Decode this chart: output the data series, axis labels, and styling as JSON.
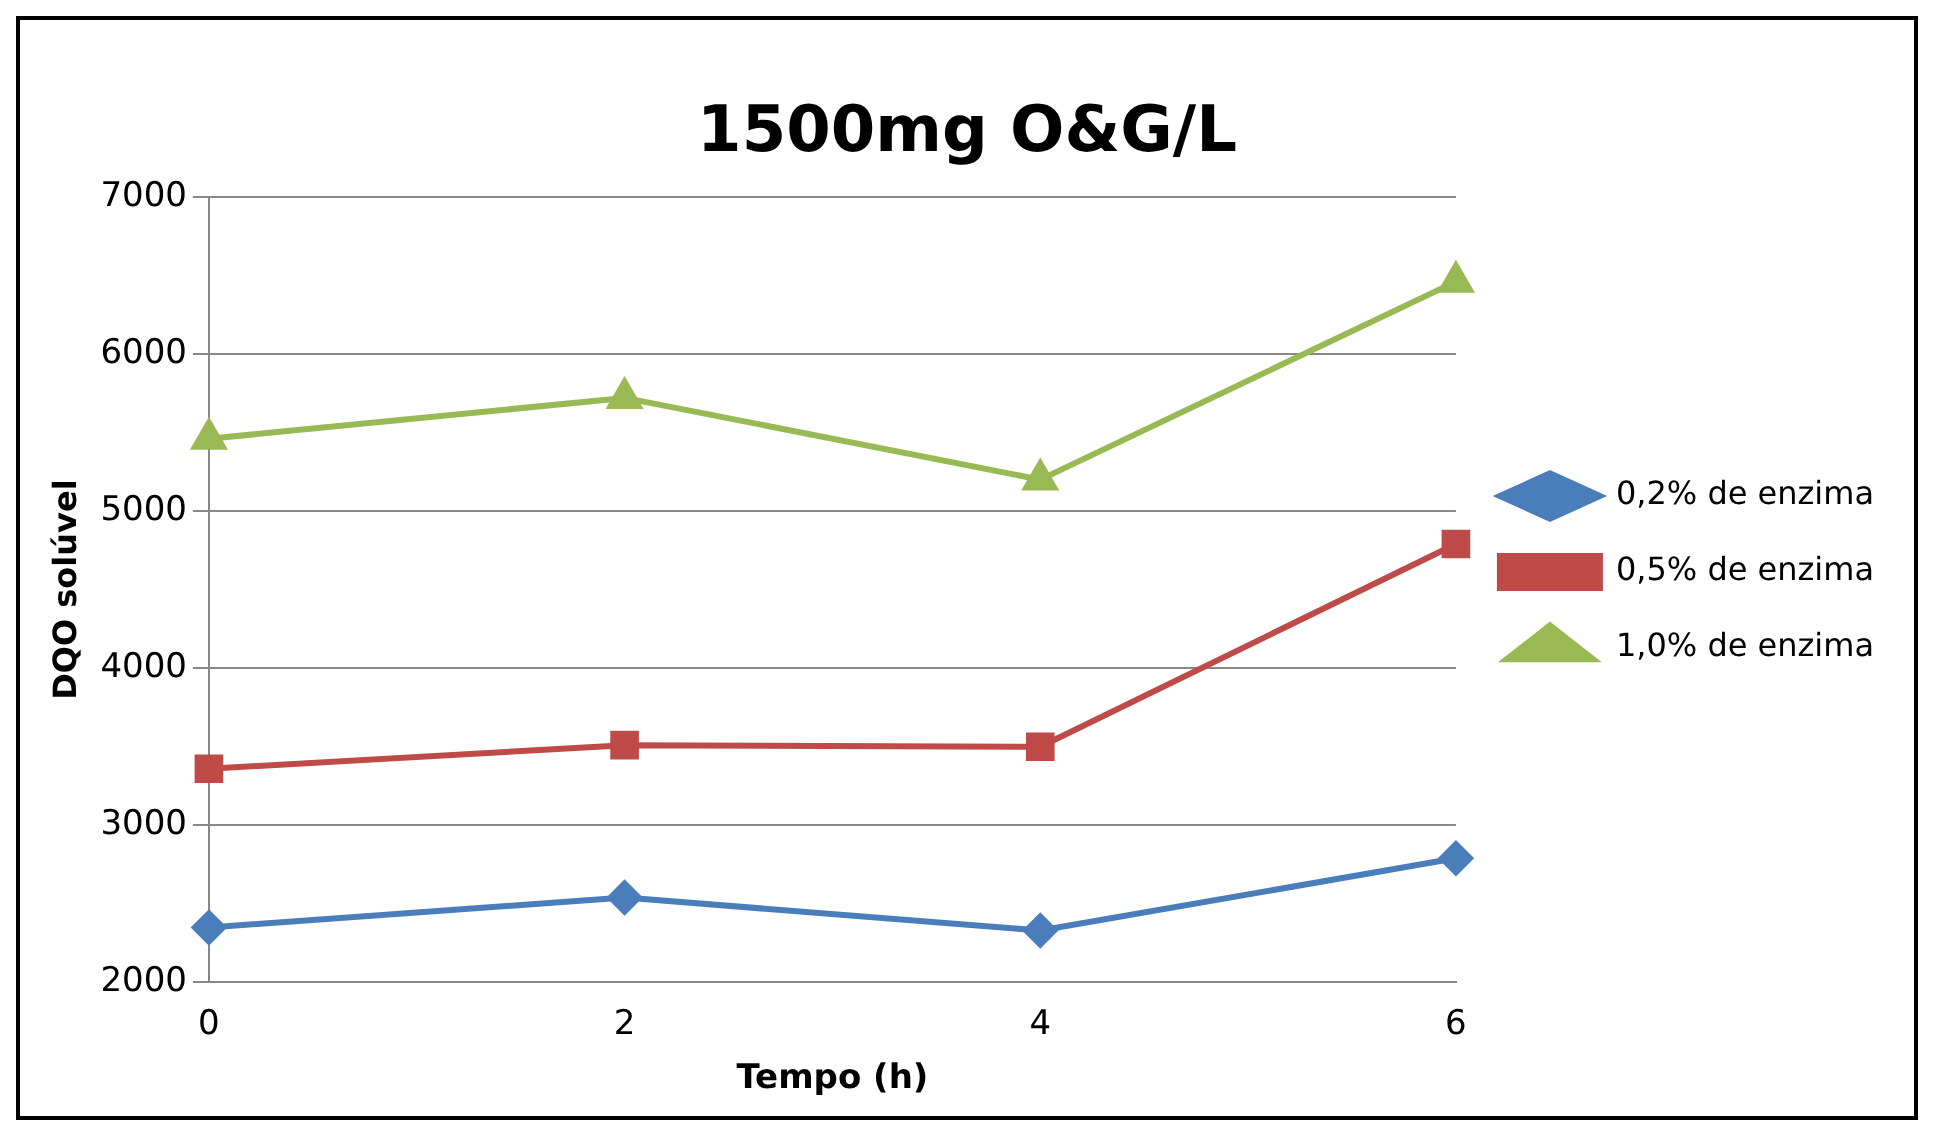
{
  "chart_data": {
    "type": "line",
    "title": "1500mg O&G/L",
    "xlabel": "Tempo (h)",
    "ylabel": "DQO solúvel",
    "categories": [
      "0",
      "2",
      "4",
      "6"
    ],
    "series": [
      {
        "name": "0,2% de enzima",
        "color": "#4a7ebb",
        "marker": "diamond",
        "values": [
          2350,
          2540,
          2330,
          2790
        ]
      },
      {
        "name": "0,5% de enzima",
        "color": "#be4b48",
        "marker": "square",
        "values": [
          3360,
          3510,
          3500,
          4790
        ]
      },
      {
        "name": "1,0% de enzima",
        "color": "#98b954",
        "marker": "triangle",
        "values": [
          5460,
          5720,
          5200,
          6460
        ]
      }
    ],
    "ylim": [
      2000,
      7000
    ],
    "yticks": [
      2000,
      3000,
      4000,
      5000,
      6000,
      7000
    ],
    "grid": "y",
    "legend": "right"
  }
}
